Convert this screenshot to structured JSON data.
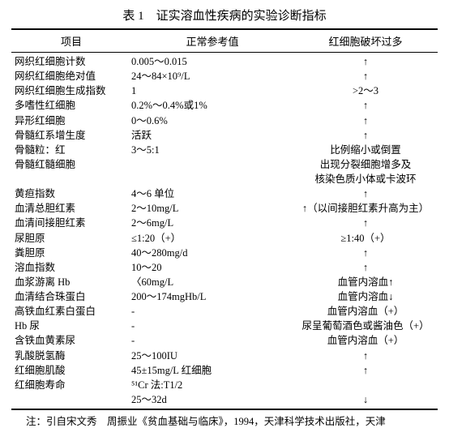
{
  "title": "表 1　证实溶血性疾病的实验诊断指标",
  "headers": {
    "col1": "项目",
    "col2": "正常参考值",
    "col3": "红细胞破坏过多"
  },
  "rows": [
    {
      "c1": "网织红细胞计数",
      "c2": "0.005～0.015",
      "c3": "↑"
    },
    {
      "c1": "网织红细胞绝对值",
      "c2": "24～84×10⁹/L",
      "c3": "↑"
    },
    {
      "c1": "网织红细胞生成指数",
      "c2": "1",
      "c3": ">2～3"
    },
    {
      "c1": "多嗜性红细胞",
      "c2": "0.2%～0.4%或1%",
      "c3": "↑"
    },
    {
      "c1": "异形红细胞",
      "c2": "0～0.6%",
      "c3": "↑"
    },
    {
      "c1": "骨髓红系增生度",
      "c2": "活跃",
      "c3": "↑"
    },
    {
      "c1": "骨髓粒：红",
      "c2": "3～5:1",
      "c3": "比例缩小或倒置"
    },
    {
      "c1": "骨髓红髓细胞",
      "c2": "",
      "c3": "出现分裂细胞增多及"
    },
    {
      "c1": "",
      "c2": "",
      "c3": "核染色质小体或卡波环"
    },
    {
      "c1": "黄疸指数",
      "c2": "4～6 单位",
      "c3": "↑"
    },
    {
      "c1": "血清总胆红素",
      "c2": "2～10mg/L",
      "c3": "↑（以间接胆红素升高为主）"
    },
    {
      "c1": "血清间接胆红素",
      "c2": "2～6mg/L",
      "c3": "↑"
    },
    {
      "c1": "尿胆原",
      "c2": "≤1:20（+）",
      "c3": "≥1:40（+）"
    },
    {
      "c1": "粪胆原",
      "c2": "40～280mg/d",
      "c3": "↑"
    },
    {
      "c1": "溶血指数",
      "c2": "10～20",
      "c3": "↑"
    },
    {
      "c1": "血浆游离 Hb",
      "c2": "〈60mg/L",
      "c3": "血管内溶血↑"
    },
    {
      "c1": "血清结合珠蛋白",
      "c2": "200～174mgHb/L",
      "c3": "血管内溶血↓"
    },
    {
      "c1": "高铁血红素白蛋白",
      "c2": "-",
      "c3": "血管内溶血（+）"
    },
    {
      "c1": "Hb 尿",
      "c2": "-",
      "c3": "尿呈葡萄酒色或酱油色（+）"
    },
    {
      "c1": "含铁血黄素尿",
      "c2": "-",
      "c3": "血管内溶血（+）"
    },
    {
      "c1": "乳酸脱氢酶",
      "c2": "25～100IU",
      "c3": "↑"
    },
    {
      "c1": "红细胞肌酸",
      "c2": "45±15mg/L 红细胞",
      "c3": "↑"
    },
    {
      "c1": "红细胞寿命",
      "c2": "⁵¹Cr 法:T1/2",
      "c3": ""
    },
    {
      "c1": "",
      "c2": "25～32d",
      "c3": "↓"
    }
  ],
  "note": "注：引自宋文秀　周振业《贫血基础与临床》，1994，天津科学技术出版社，天津"
}
